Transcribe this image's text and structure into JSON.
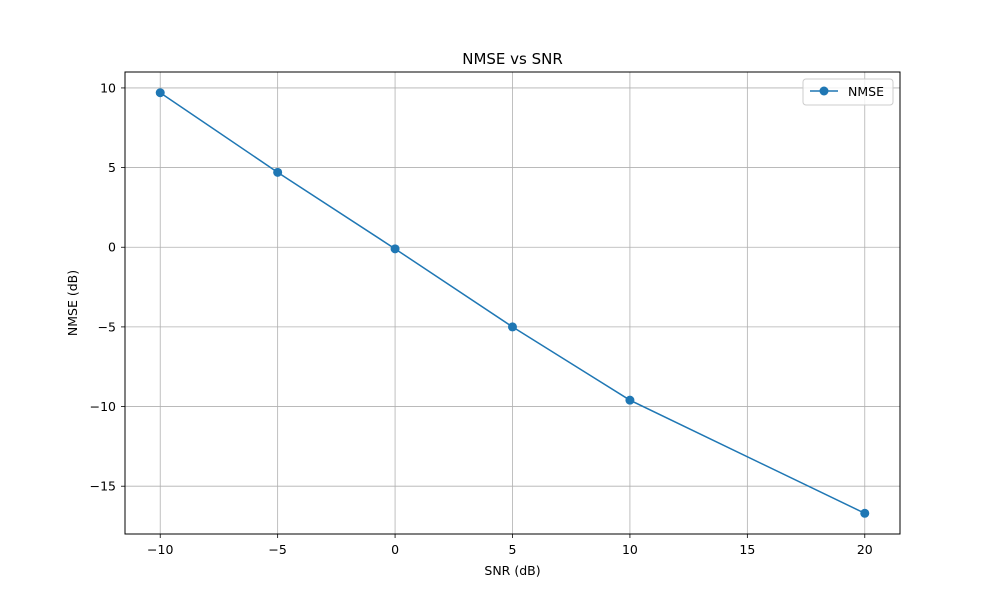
{
  "chart_data": {
    "type": "line",
    "title": "NMSE vs SNR",
    "xlabel": "SNR (dB)",
    "ylabel": "NMSE (dB)",
    "x": [
      -10,
      -5,
      0,
      5,
      10,
      20
    ],
    "series": [
      {
        "name": "NMSE",
        "values": [
          9.7,
          4.7,
          -0.1,
          -5.0,
          -9.6,
          -16.7
        ],
        "color": "#1f77b4",
        "marker": "circle"
      }
    ],
    "xlim": [
      -11.5,
      21.5
    ],
    "ylim": [
      -18.0,
      11.0
    ],
    "xticks": [
      -10,
      -5,
      0,
      5,
      10,
      15,
      20
    ],
    "xtick_labels": [
      "−10",
      "−5",
      "0",
      "5",
      "10",
      "15",
      "20"
    ],
    "yticks": [
      -15,
      -10,
      -5,
      0,
      5,
      10
    ],
    "ytick_labels": [
      "−15",
      "−10",
      "−5",
      "0",
      "5",
      "10"
    ],
    "grid": true,
    "legend_position": "top-right"
  }
}
